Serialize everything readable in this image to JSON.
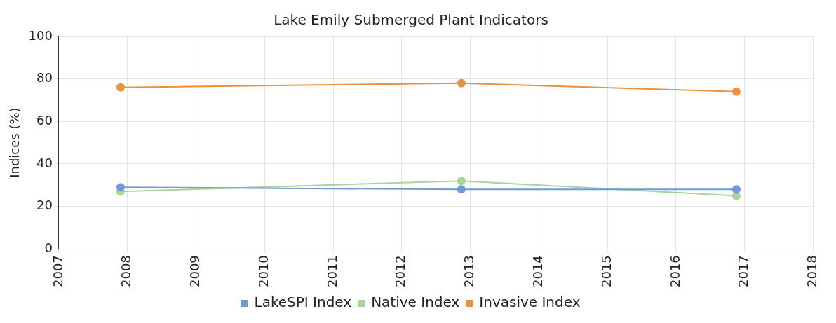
{
  "chart_data": {
    "type": "line",
    "title": "Lake Emily Submerged Plant Indicators",
    "ylabel": "Indices (%)",
    "x": [
      2007.9,
      2012.87,
      2016.88
    ],
    "series": [
      {
        "name": "LakeSPI Index",
        "color": "#6f9bd1",
        "values": [
          29,
          28,
          28
        ]
      },
      {
        "name": "Native Index",
        "color": "#a6d49a",
        "values": [
          27,
          32,
          25
        ]
      },
      {
        "name": "Invasive Index",
        "color": "#ee8f3c",
        "values": [
          76,
          78,
          74
        ]
      }
    ],
    "xlim": [
      2007,
      2018
    ],
    "xticks": [
      2007,
      2008,
      2009,
      2010,
      2011,
      2012,
      2013,
      2014,
      2015,
      2016,
      2017,
      2018
    ],
    "ylim": [
      0,
      100
    ],
    "yticks": [
      0,
      20,
      40,
      60,
      80,
      100
    ],
    "grid": true,
    "legend": "bottom",
    "marker": "circle",
    "line_style": "solid"
  }
}
